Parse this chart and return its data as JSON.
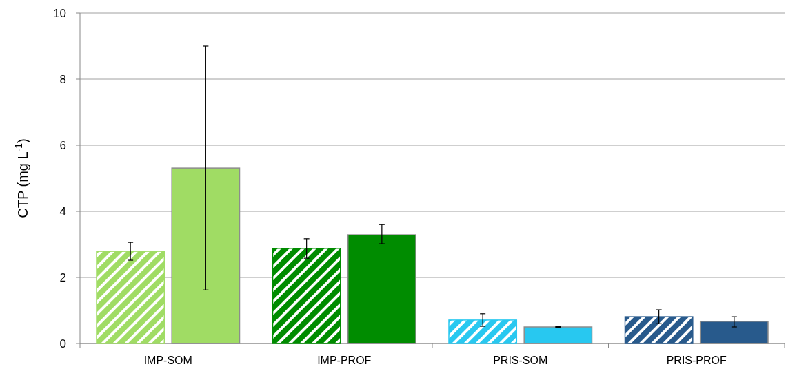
{
  "chart_data": {
    "type": "bar",
    "ylabel": "CTP (mg L$^{-1}$)",
    "categories": [
      "IMP-SOM",
      "IMP-PROF",
      "PRIS-SOM",
      "PRIS-PROF"
    ],
    "series": [
      {
        "colors": [
          "#a0dc64",
          "#008c00",
          "#28c8f0",
          "#285a8c"
        ],
        "values": [
          2.79,
          2.88,
          0.71,
          0.81
        ],
        "errors": [
          [
            2.52,
            3.06
          ],
          [
            2.58,
            3.17
          ],
          [
            0.52,
            0.9
          ],
          [
            0.6,
            1.02
          ]
        ]
      },
      {
        "colors": [
          "#a0dc64",
          "#008c00",
          "#28c8f0",
          "#285a8c"
        ],
        "values": [
          5.31,
          3.29,
          0.5,
          0.67
        ],
        "errors": [
          [
            1.62,
            9.0
          ],
          [
            3.02,
            3.6
          ],
          [
            0.49,
            0.51
          ],
          [
            0.5,
            0.81
          ]
        ]
      }
    ],
    "ylim": [
      0,
      10
    ],
    "yticks": [
      0,
      2,
      4,
      6,
      8,
      10
    ],
    "grid": "y"
  }
}
